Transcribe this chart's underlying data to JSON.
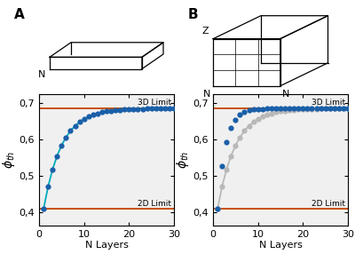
{
  "phi_2d": 0.4096,
  "phi_3d": 0.6863,
  "x_ticks": [
    0,
    10,
    20,
    30
  ],
  "y_ticks": [
    0.4,
    0.5,
    0.6,
    0.7
  ],
  "y_tick_labels": [
    "0,4",
    "0,5",
    "0,6",
    "0,7"
  ],
  "ylim": [
    0.365,
    0.725
  ],
  "xlim": [
    0,
    30
  ],
  "xlabel": "N Layers",
  "ylabel": "$\\phi_{th}$",
  "limit_3d_label": "3D Limit",
  "limit_2d_label": "2D Limit",
  "line_color_orange": "#C85000",
  "line_color_teal": "#00AABB",
  "dot_color_blue": "#1A5FA8",
  "dot_color_gray": "#B8B8B8",
  "bg_color": "#F0F0F0",
  "panel_a_label": "A",
  "panel_b_label": "B",
  "alpha_slab": 0.25,
  "alpha_cube": 0.55
}
